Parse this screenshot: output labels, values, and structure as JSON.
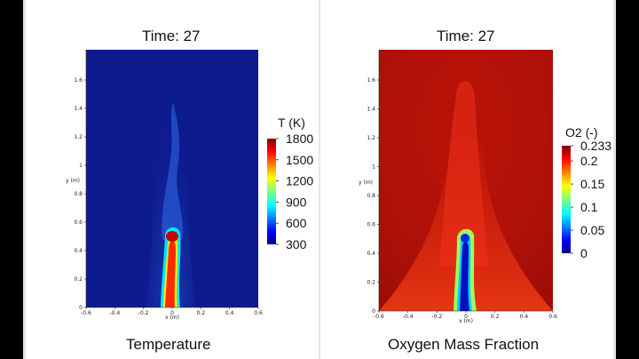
{
  "left": {
    "time_label": "Time: 27",
    "caption": "Temperature",
    "colorbar_title": "T (K)",
    "colorbar_ticks": [
      "1800",
      "1500",
      "1200",
      "900",
      "600",
      "300"
    ]
  },
  "right": {
    "time_label": "Time: 27",
    "caption": "Oxygen Mass Fraction",
    "colorbar_title": "O2 (-)",
    "colorbar_ticks": [
      "0.233",
      "0.2",
      "0.15",
      "0.1",
      "0.05",
      "0"
    ]
  },
  "axes": {
    "ylabel": "y (m)",
    "xlabel": "x (m)",
    "y_ticks": [
      "0",
      "0.2",
      "0.4",
      "0.6",
      "0.8",
      "1",
      "1.2",
      "1.4",
      "1.6"
    ],
    "x_ticks": [
      "-0.6",
      "-0.4",
      "-0.2",
      "0",
      "0.2",
      "0.4",
      "0.6"
    ]
  },
  "colors": {
    "temp_background": "#0d1b8f",
    "oxygen_background": "#b51208"
  }
}
